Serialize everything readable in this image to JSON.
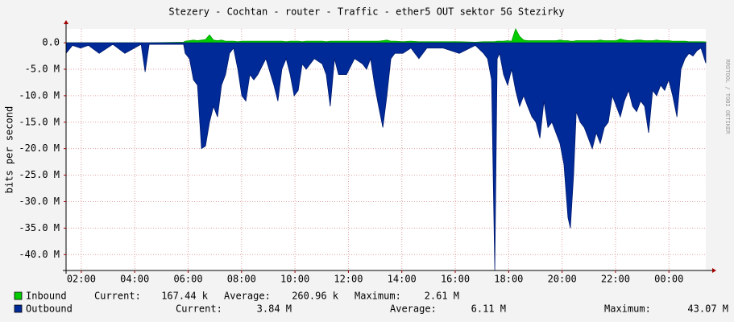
{
  "chart_data": {
    "type": "area",
    "title": "Stezery - Cochtan - router - Traffic - ether5 OUT sektor 5G Stezirky",
    "y_label": "bits per second",
    "side_label": "RRDTOOL / TOBI OETIKER",
    "x": [
      1.43,
      1.67,
      1.97,
      2.27,
      2.67,
      3.18,
      3.63,
      4.24,
      4.39,
      4.54,
      5.83,
      5.89,
      6.05,
      6.2,
      6.35,
      6.5,
      6.65,
      6.8,
      6.95,
      7.1,
      7.25,
      7.4,
      7.55,
      7.7,
      7.86,
      8.01,
      8.16,
      8.31,
      8.46,
      8.61,
      8.91,
      9.21,
      9.36,
      9.51,
      9.67,
      9.82,
      9.97,
      10.12,
      10.27,
      10.42,
      10.72,
      11.02,
      11.17,
      11.32,
      11.48,
      11.63,
      11.93,
      12.23,
      12.53,
      12.68,
      12.83,
      12.98,
      13.13,
      13.29,
      13.44,
      13.59,
      13.74,
      14.04,
      14.34,
      14.64,
      14.94,
      15.55,
      16.15,
      16.75,
      17.06,
      17.21,
      17.36,
      17.48,
      17.57,
      17.66,
      17.81,
      17.96,
      18.11,
      18.26,
      18.41,
      18.56,
      18.71,
      18.87,
      19.02,
      19.17,
      19.32,
      19.47,
      19.62,
      19.77,
      19.92,
      20.07,
      20.22,
      20.31,
      20.43,
      20.53,
      20.68,
      20.83,
      20.98,
      21.13,
      21.28,
      21.43,
      21.58,
      21.73,
      21.88,
      22.03,
      22.18,
      22.33,
      22.49,
      22.64,
      22.79,
      22.94,
      23.09,
      23.24,
      23.39,
      23.54,
      23.69,
      23.84,
      23.99,
      24.14,
      24.3,
      24.45,
      24.6,
      24.75,
      24.9,
      25.05,
      25.2,
      25.38
    ],
    "series": [
      {
        "name": "Inbound",
        "color": "#00cc00",
        "edge": "#00a000",
        "stats": [
          {
            "label": "Current:",
            "value": "167.44 k"
          },
          {
            "label": "Average:",
            "value": "260.96 k"
          },
          {
            "label": "Maximum:",
            "value": "2.61 M"
          }
        ],
        "values": [
          0,
          0,
          0,
          0,
          0,
          0,
          0,
          0,
          0,
          0,
          100000,
          300000,
          400000,
          500000,
          400000,
          500000,
          600000,
          1500000,
          500000,
          400000,
          500000,
          300000,
          300000,
          300000,
          200000,
          300000,
          300000,
          300000,
          300000,
          300000,
          300000,
          300000,
          300000,
          300000,
          200000,
          300000,
          300000,
          300000,
          200000,
          300000,
          300000,
          300000,
          200000,
          300000,
          300000,
          300000,
          300000,
          300000,
          300000,
          300000,
          300000,
          300000,
          300000,
          400000,
          500000,
          300000,
          300000,
          200000,
          300000,
          200000,
          200000,
          200000,
          200000,
          100000,
          200000,
          200000,
          200000,
          200000,
          300000,
          300000,
          300000,
          400000,
          300000,
          2610000,
          1200000,
          500000,
          400000,
          400000,
          400000,
          400000,
          400000,
          400000,
          400000,
          400000,
          500000,
          400000,
          400000,
          300000,
          300000,
          400000,
          400000,
          400000,
          400000,
          400000,
          400000,
          500000,
          400000,
          400000,
          400000,
          400000,
          700000,
          500000,
          400000,
          400000,
          500000,
          500000,
          400000,
          400000,
          400000,
          500000,
          400000,
          400000,
          400000,
          300000,
          300000,
          300000,
          300000,
          200000,
          200000,
          200000,
          200000,
          167440
        ]
      },
      {
        "name": "Outbound",
        "color": "#002a97",
        "edge": "#001a70",
        "stats": [
          {
            "label": "Current:",
            "value": "3.84 M"
          },
          {
            "label": "Average:",
            "value": "6.11 M"
          },
          {
            "label": "Maximum:",
            "value": "43.07 M"
          }
        ],
        "values": [
          -2000000,
          -500000,
          -1000000,
          -500000,
          -2000000,
          -300000,
          -2000000,
          -300000,
          -5500000,
          -300000,
          -300000,
          -2000000,
          -3000000,
          -7000000,
          -8000000,
          -20000000,
          -19500000,
          -15000000,
          -12000000,
          -14000000,
          -8000000,
          -6000000,
          -2000000,
          -1000000,
          -5000000,
          -10000000,
          -11000000,
          -6000000,
          -7000000,
          -6000000,
          -3000000,
          -8000000,
          -11000000,
          -5000000,
          -3000000,
          -6000000,
          -10000000,
          -9000000,
          -4000000,
          -5000000,
          -3000000,
          -4000000,
          -6000000,
          -12000000,
          -3000000,
          -6000000,
          -6000000,
          -3000000,
          -4000000,
          -5000000,
          -3000000,
          -8000000,
          -12000000,
          -16000000,
          -10000000,
          -3000000,
          -2000000,
          -2000000,
          -1000000,
          -3000000,
          -1000000,
          -1000000,
          -2000000,
          -500000,
          -2000000,
          -3000000,
          -7000000,
          -43000000,
          -3000000,
          -2000000,
          -6000000,
          -8000000,
          -5000000,
          -9000000,
          -12000000,
          -10000000,
          -12000000,
          -14000000,
          -15000000,
          -18000000,
          -11000000,
          -16000000,
          -15000000,
          -17000000,
          -19000000,
          -23000000,
          -33000000,
          -35000000,
          -25000000,
          -13000000,
          -15000000,
          -16000000,
          -18000000,
          -20000000,
          -17000000,
          -19000000,
          -16000000,
          -15000000,
          -10000000,
          -12000000,
          -14000000,
          -11000000,
          -9000000,
          -12000000,
          -13000000,
          -11000000,
          -12000000,
          -17000000,
          -9000000,
          -10000000,
          -8000000,
          -9000000,
          -7000000,
          -10000000,
          -14000000,
          -5000000,
          -3000000,
          -2000000,
          -2500000,
          -1500000,
          -1000000,
          -3840000
        ]
      }
    ],
    "xlim": [
      1.43,
      25.38
    ],
    "xticks": [
      {
        "value": 2,
        "label": "02:00"
      },
      {
        "value": 4,
        "label": "04:00"
      },
      {
        "value": 6,
        "label": "06:00"
      },
      {
        "value": 8,
        "label": "08:00"
      },
      {
        "value": 10,
        "label": "10:00"
      },
      {
        "value": 12,
        "label": "12:00"
      },
      {
        "value": 14,
        "label": "14:00"
      },
      {
        "value": 16,
        "label": "16:00"
      },
      {
        "value": 18,
        "label": "18:00"
      },
      {
        "value": 20,
        "label": "20:00"
      },
      {
        "value": 22,
        "label": "22:00"
      },
      {
        "value": 24,
        "label": "00:00"
      }
    ],
    "ylim": [
      -43000000,
      2600000
    ],
    "yticks": [
      {
        "value": 0,
        "label": "0.0"
      },
      {
        "value": -5000000,
        "label": "-5.0 M"
      },
      {
        "value": -10000000,
        "label": "-10.0 M"
      },
      {
        "value": -15000000,
        "label": "-15.0 M"
      },
      {
        "value": -20000000,
        "label": "-20.0 M"
      },
      {
        "value": -25000000,
        "label": "-25.0 M"
      },
      {
        "value": -30000000,
        "label": "-30.0 M"
      },
      {
        "value": -35000000,
        "label": "-35.0 M"
      },
      {
        "value": -40000000,
        "label": "-40.0 M"
      }
    ],
    "grid": true
  }
}
